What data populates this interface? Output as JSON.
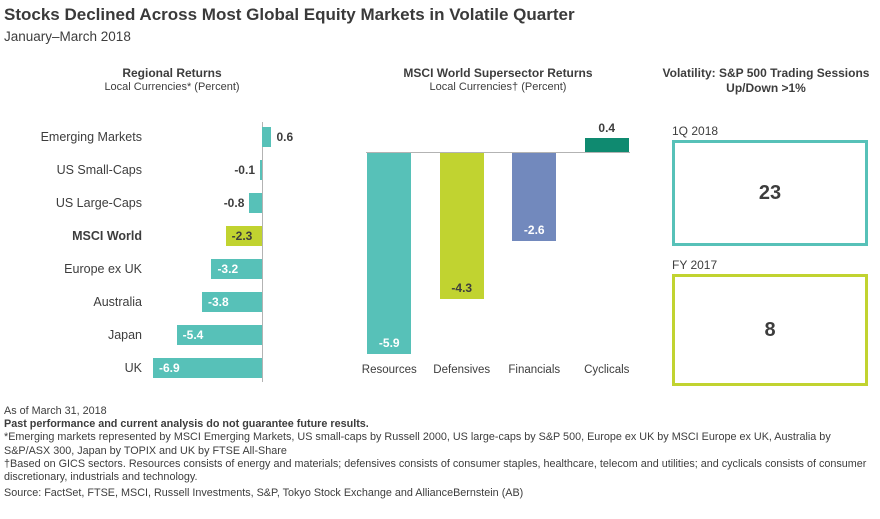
{
  "header": {
    "title": "Stocks Declined Across Most Global Equity Markets in Volatile Quarter",
    "subtitle": "January–March 2018"
  },
  "colors": {
    "teal": "#57C1B8",
    "yellow_green": "#C1D330",
    "slate_blue": "#7289BD",
    "dark_green": "#0F8A70",
    "text_dark": "#3D3D3D",
    "axis_gray": "#B3B3B3"
  },
  "chart_data": [
    {
      "type": "bar",
      "orientation": "horizontal",
      "title": "Regional Returns",
      "subtitle": "Local Currencies* (Percent)",
      "categories": [
        "Emerging Markets",
        "US Small-Caps",
        "US Large-Caps",
        "MSCI World",
        "Europe ex UK",
        "Australia",
        "Japan",
        "UK"
      ],
      "values": [
        0.6,
        -0.1,
        -0.8,
        -2.3,
        -3.2,
        -3.8,
        -5.4,
        -6.9
      ],
      "highlight_category": "MSCI World",
      "xlim": [
        -7.5,
        1.5
      ],
      "grid": false,
      "value_labels": true
    },
    {
      "type": "bar",
      "orientation": "vertical",
      "title": "MSCI World Supersector Returns",
      "subtitle": "Local Currencies† (Percent)",
      "categories": [
        "Resources",
        "Defensives",
        "Financials",
        "Cyclicals"
      ],
      "values": [
        -5.9,
        -4.3,
        -2.6,
        0.4
      ],
      "bar_colors": [
        "teal",
        "yellow_green",
        "slate_blue",
        "dark_green"
      ],
      "ylim": [
        -6.5,
        1
      ],
      "grid": false,
      "value_labels": true
    },
    {
      "type": "kpi",
      "title": "Volatility: S&P 500 Trading Sessions Up/Down >1%",
      "boxes": [
        {
          "label": "1Q 2018",
          "value": "23",
          "color": "teal"
        },
        {
          "label": "FY 2017",
          "value": "8",
          "color": "yellow_green"
        }
      ]
    }
  ],
  "footnotes": {
    "as_of": "As of March 31, 2018",
    "disclaimer": "Past performance and current analysis do not guarantee future results.",
    "footnote_star": "*Emerging markets represented by MSCI Emerging Markets, US small-caps by Russell 2000, US large-caps by S&P 500, Europe ex UK by MSCI Europe ex UK, Australia by S&P/ASX 300, Japan by TOPIX and UK by FTSE All-Share",
    "footnote_dagger": "†Based on GICS sectors. Resources consists of energy and materials; defensives consists of consumer staples, healthcare, telecom and utilities; and cyclicals consists of consumer discretionary, industrials and technology.",
    "source": "Source: FactSet, FTSE, MSCI, Russell Investments, S&P, Tokyo Stock Exchange and AllianceBernstein (AB)"
  }
}
